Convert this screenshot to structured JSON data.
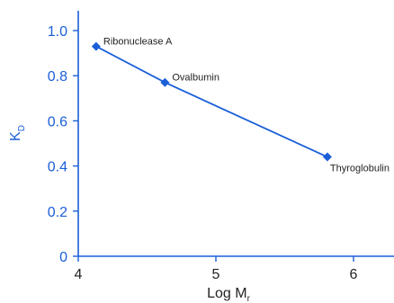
{
  "chart_data": {
    "type": "line",
    "xlabel": "Log M",
    "xlabel_sub": "r",
    "ylabel": "K",
    "ylabel_sub": "D",
    "xlim": [
      4,
      6.2
    ],
    "ylim": [
      0,
      1.1
    ],
    "x_ticks": [
      4,
      5,
      6
    ],
    "y_ticks": [
      0,
      0.2,
      0.4,
      0.6,
      0.8,
      1.0
    ],
    "x_tick_labels": [
      "4",
      "5",
      "6"
    ],
    "y_tick_labels": [
      "0",
      "0.2",
      "0.4",
      "0.6",
      "0.8",
      "1.0"
    ],
    "grid": false,
    "series": [
      {
        "points": [
          {
            "x": 4.13,
            "y": 0.93,
            "label": "Ribonuclease A"
          },
          {
            "x": 4.63,
            "y": 0.77,
            "label": "Ovalbumin"
          },
          {
            "x": 5.81,
            "y": 0.44,
            "label": "Thyroglobulin"
          }
        ]
      }
    ],
    "colors": {
      "line": "#1a5fd8",
      "axis": "#1a5fd8",
      "ylabel": "#1a5fd8",
      "xlabel": "#222222"
    }
  }
}
